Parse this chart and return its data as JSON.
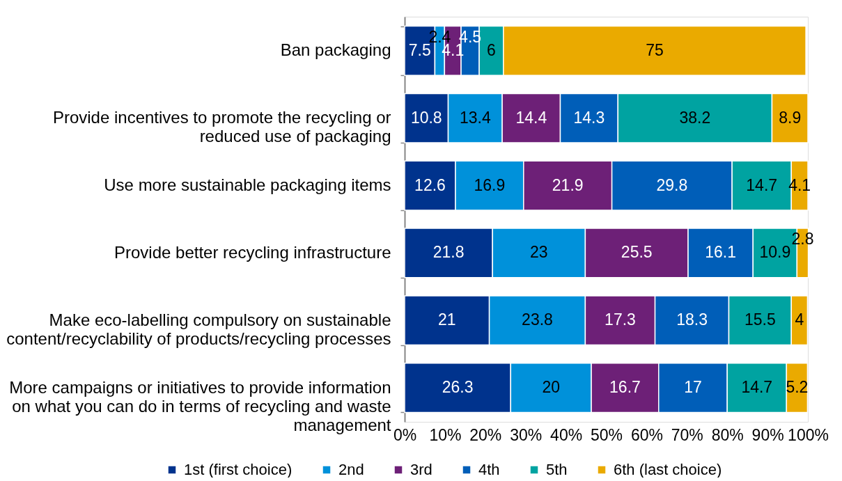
{
  "chart_data": {
    "type": "bar",
    "orientation": "horizontal",
    "stacked": true,
    "data_labels": true,
    "legend": "bottom",
    "categories": [
      "Ban packaging",
      "Provide incentives to promote the recycling or reduced use of packaging",
      "Use more sustainable packaging items",
      "Provide better recycling infrastructure",
      "Make eco-labelling compulsory on sustainable content/recyclability of products/recycling processes",
      "More campaigns or initiatives to provide information on what you can do in terms of recycling and waste management"
    ],
    "series": [
      {
        "name": "1st (first choice)",
        "color": "#00338d",
        "values": [
          7.5,
          10.8,
          12.6,
          21.8,
          21,
          26.3
        ]
      },
      {
        "name": "2nd",
        "color": "#0091da",
        "values": [
          2.4,
          13.4,
          16.9,
          23,
          23.8,
          20
        ]
      },
      {
        "name": "3rd",
        "color": "#6d2077",
        "values": [
          4.1,
          14.4,
          21.9,
          25.5,
          17.3,
          16.7
        ]
      },
      {
        "name": "4th",
        "color": "#005eb8",
        "values": [
          4.5,
          14.3,
          29.8,
          16.1,
          18.3,
          17
        ]
      },
      {
        "name": "5th",
        "color": "#00a3a1",
        "values": [
          6,
          38.2,
          14.7,
          10.9,
          15.5,
          14.7
        ]
      },
      {
        "name": "6th (last choice)",
        "color": "#eaaa00",
        "values": [
          75,
          8.9,
          4.1,
          2.8,
          4,
          5.2
        ]
      }
    ],
    "xlim": [
      0,
      100
    ],
    "xticks": [
      {
        "value": 0,
        "label": "0%"
      },
      {
        "value": 10,
        "label": "10%"
      },
      {
        "value": 20,
        "label": "20%"
      },
      {
        "value": 30,
        "label": "30%"
      },
      {
        "value": 40,
        "label": "40%"
      },
      {
        "value": 50,
        "label": "50%"
      },
      {
        "value": 60,
        "label": "60%"
      },
      {
        "value": 70,
        "label": "70%"
      },
      {
        "value": 80,
        "label": "80%"
      },
      {
        "value": 90,
        "label": "90%"
      },
      {
        "value": 100,
        "label": "100%"
      }
    ]
  }
}
